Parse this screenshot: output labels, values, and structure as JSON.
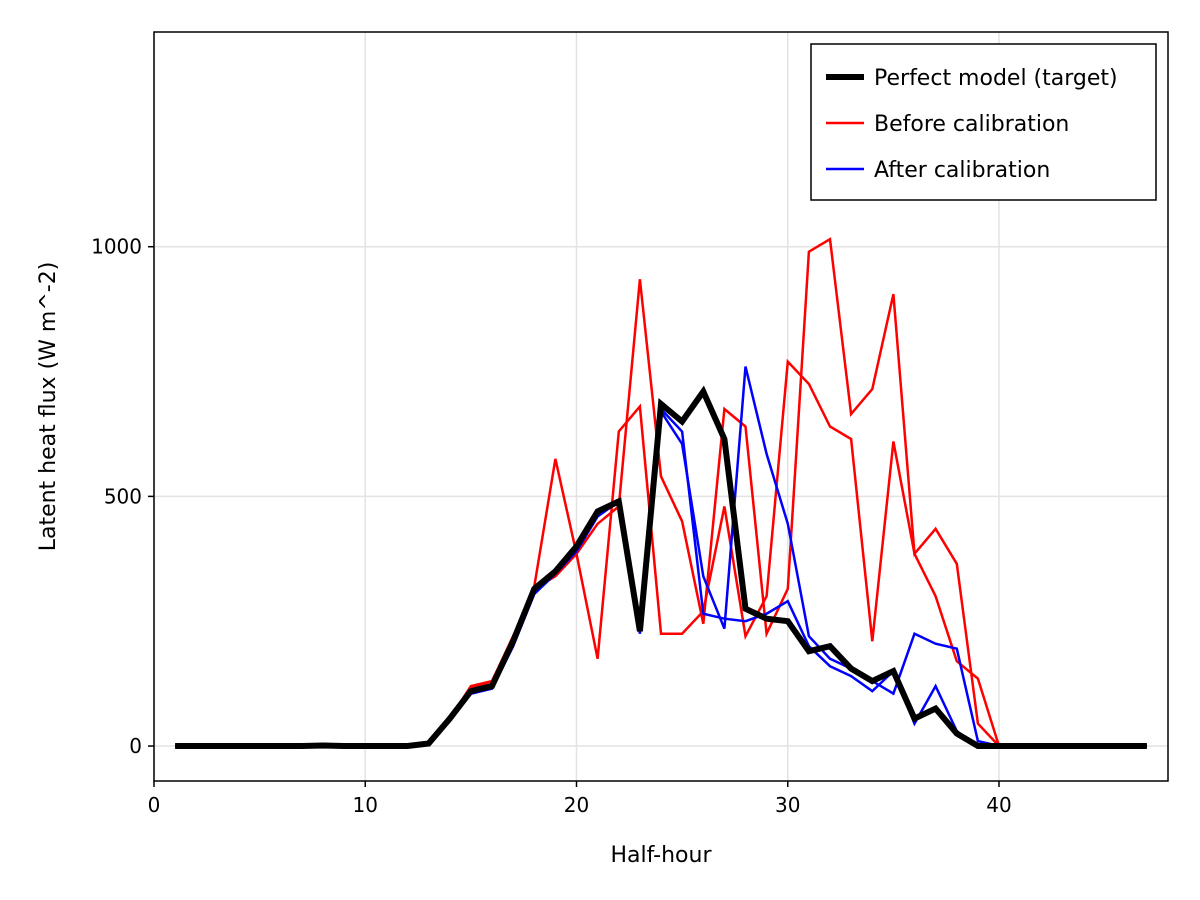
{
  "chart_data": {
    "type": "line",
    "xlabel": "Half-hour",
    "ylabel": "Latent heat flux (W m^-2)",
    "xlim": [
      0,
      48
    ],
    "ylim": [
      -70,
      1430
    ],
    "xticks": [
      0,
      10,
      20,
      30,
      40
    ],
    "yticks": [
      0,
      500,
      1000
    ],
    "grid": true,
    "legend_position": "top-right",
    "x": [
      1,
      2,
      3,
      4,
      5,
      6,
      7,
      8,
      9,
      10,
      11,
      12,
      13,
      14,
      15,
      16,
      17,
      18,
      19,
      20,
      21,
      22,
      23,
      24,
      25,
      26,
      27,
      28,
      29,
      30,
      31,
      32,
      33,
      34,
      35,
      36,
      37,
      38,
      39,
      40,
      41,
      42,
      43,
      44,
      45,
      46,
      47
    ],
    "series": [
      {
        "name": "Perfect model (target)",
        "color": "#000000",
        "width": 6,
        "values": [
          0,
          0,
          0,
          0,
          0,
          0,
          0,
          1,
          0,
          0,
          0,
          0,
          5,
          55,
          110,
          120,
          210,
          315,
          350,
          400,
          470,
          490,
          230,
          685,
          650,
          710,
          615,
          275,
          255,
          250,
          190,
          200,
          155,
          130,
          150,
          55,
          75,
          25,
          0,
          0,
          0,
          0,
          0,
          0,
          0,
          0,
          0
        ]
      },
      {
        "name": "Before calibration",
        "color": "#ff0000",
        "width": 2.5,
        "values": [
          0,
          0,
          0,
          0,
          0,
          0,
          0,
          0,
          0,
          0,
          0,
          0,
          5,
          55,
          115,
          130,
          220,
          315,
          340,
          385,
          445,
          480,
          935,
          540,
          450,
          245,
          675,
          640,
          225,
          315,
          990,
          1015,
          665,
          715,
          905,
          385,
          435,
          365,
          45,
          0,
          0,
          0,
          0,
          0,
          0,
          0,
          0
        ]
      },
      {
        "name": "",
        "color": "#ff0000",
        "width": 2.5,
        "values": [
          0,
          0,
          0,
          0,
          0,
          0,
          0,
          0,
          0,
          0,
          0,
          0,
          5,
          55,
          120,
          130,
          215,
          320,
          575,
          385,
          175,
          630,
          680,
          225,
          225,
          270,
          480,
          220,
          300,
          770,
          725,
          640,
          615,
          210,
          610,
          385,
          300,
          170,
          135,
          0,
          0,
          0,
          0,
          0,
          0,
          0,
          0
        ]
      },
      {
        "name": "After calibration",
        "color": "#0000ff",
        "width": 2.5,
        "values": [
          0,
          0,
          0,
          0,
          0,
          0,
          0,
          0,
          0,
          0,
          0,
          0,
          3,
          50,
          105,
          115,
          200,
          305,
          345,
          390,
          460,
          490,
          230,
          675,
          630,
          265,
          255,
          250,
          265,
          290,
          200,
          160,
          140,
          110,
          150,
          45,
          120,
          30,
          0,
          0,
          0,
          0,
          0,
          0,
          0,
          0,
          0
        ]
      },
      {
        "name": "",
        "color": "#0000ff",
        "width": 2.5,
        "values": [
          0,
          0,
          0,
          0,
          0,
          0,
          0,
          0,
          0,
          0,
          0,
          0,
          3,
          50,
          105,
          115,
          200,
          305,
          345,
          390,
          460,
          490,
          225,
          670,
          605,
          340,
          235,
          760,
          585,
          445,
          220,
          175,
          155,
          130,
          105,
          225,
          205,
          195,
          10,
          0,
          0,
          0,
          0,
          0,
          0,
          0,
          0
        ]
      }
    ]
  }
}
